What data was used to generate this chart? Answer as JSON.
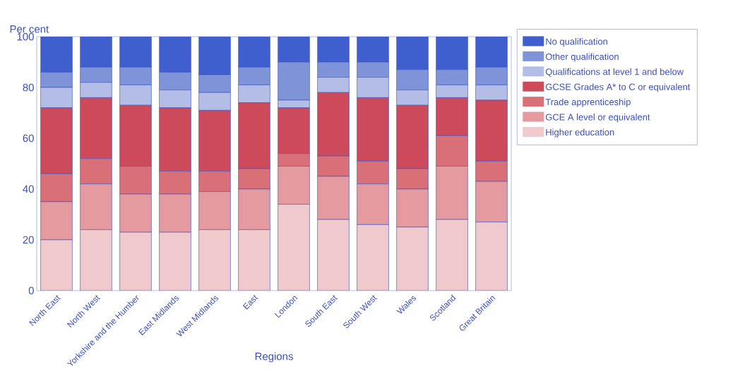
{
  "chart_data": {
    "type": "bar",
    "stacked": true,
    "ylabel": "Per cent",
    "xlabel": "Regions",
    "categories": [
      "North East",
      "North West",
      "Yorkshire and the Humber",
      "East Midlands",
      "West Midlands",
      "East",
      "London",
      "South East",
      "South West",
      "Wales",
      "Scotland",
      "Great Britain"
    ],
    "series": [
      {
        "name": "Higher education",
        "color": "#efc9cc",
        "values": [
          20,
          24,
          23,
          23,
          24,
          24,
          34,
          28,
          26,
          25,
          28,
          27
        ]
      },
      {
        "name": "GCE  A level or equivalent",
        "color": "#e59a9f",
        "values": [
          15,
          18,
          15,
          15,
          15,
          16,
          15,
          17,
          16,
          15,
          21,
          16
        ]
      },
      {
        "name": "Trade apprenticeship",
        "color": "#d97078",
        "values": [
          11,
          10,
          11,
          9,
          8,
          8,
          5,
          8,
          9,
          8,
          12,
          8
        ]
      },
      {
        "name": "GCSE Grades A* to C or equivalent",
        "color": "#cc4a5a",
        "values": [
          26,
          24,
          24,
          25,
          24,
          26,
          18,
          25,
          25,
          25,
          15,
          24
        ]
      },
      {
        "name": "Qualifications at level 1 and below",
        "color": "#b3bde6",
        "values": [
          8,
          6,
          8,
          7,
          7,
          7,
          3,
          6,
          8,
          6,
          5,
          6
        ]
      },
      {
        "name": "Other qualification",
        "color": "#7f93d9",
        "values": [
          6,
          6,
          7,
          7,
          7,
          7,
          15,
          6,
          6,
          8,
          6,
          7
        ]
      },
      {
        "name": "No qualification",
        "color": "#3f5fcf",
        "values": [
          14,
          12,
          12,
          14,
          15,
          12,
          10,
          10,
          10,
          13,
          13,
          12
        ]
      }
    ],
    "ylim": [
      0,
      100
    ],
    "yticks": [
      0,
      20,
      40,
      60,
      80,
      100
    ],
    "legend": "right"
  }
}
